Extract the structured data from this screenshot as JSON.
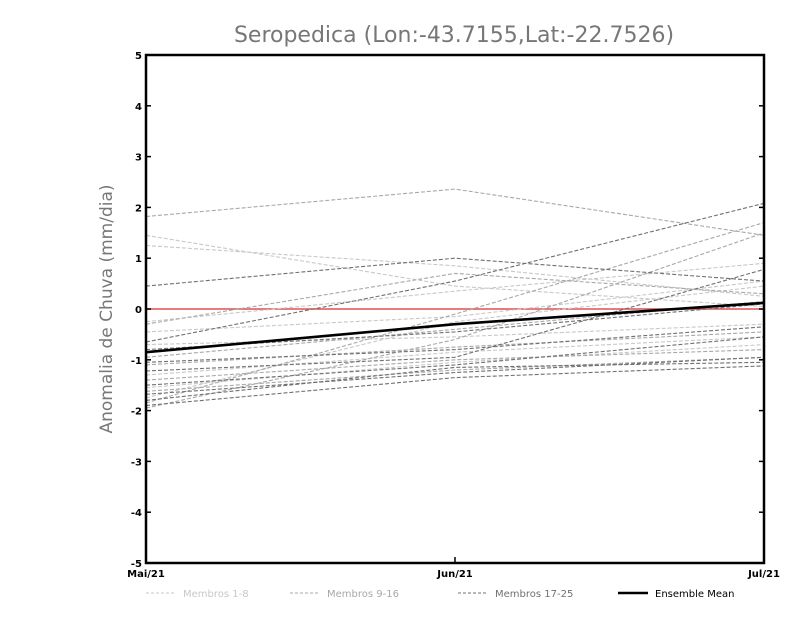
{
  "chart_data": {
    "type": "line",
    "title": "Seropedica (Lon:-43.7155,Lat:-22.7526)",
    "ylabel": "Anomalia de Chuva (mm/dia)",
    "categories": [
      "Mai/21",
      "Jun/21",
      "Jul/21"
    ],
    "ylim": [
      -5,
      5
    ],
    "yticks": [
      "5",
      "4",
      "3",
      "2",
      "1",
      "0",
      "-1",
      "-2",
      "-3",
      "-4",
      "-5"
    ],
    "reference_line": {
      "y": 0,
      "color": "#e05050"
    },
    "groups": [
      {
        "name": "Membros 1-8",
        "color": "#c8c8c8",
        "members": [
          [
            1.45,
            0.45,
            0.05
          ],
          [
            1.25,
            0.85,
            0.25
          ],
          [
            -0.25,
            0.35,
            0.9
          ],
          [
            -0.45,
            -0.15,
            0.55
          ],
          [
            -0.7,
            -0.55,
            -0.3
          ],
          [
            -1.3,
            -0.85,
            -0.55
          ],
          [
            -1.55,
            -1.05,
            -0.7
          ],
          [
            -1.75,
            -0.25,
            0.45
          ]
        ]
      },
      {
        "name": "Membros 9-16",
        "color": "#a8a8a8",
        "members": [
          [
            1.82,
            2.36,
            1.45
          ],
          [
            -0.3,
            0.7,
            0.3
          ],
          [
            -0.95,
            -0.4,
            0.15
          ],
          [
            -1.1,
            -0.75,
            -0.45
          ],
          [
            -1.4,
            -1.0,
            -0.8
          ],
          [
            -1.62,
            -1.2,
            -0.95
          ],
          [
            -1.85,
            -0.1,
            1.7
          ],
          [
            -1.95,
            -0.6,
            1.5
          ]
        ]
      },
      {
        "name": "Membros 17-25",
        "color": "#707070",
        "members": [
          [
            0.45,
            1.0,
            0.55
          ],
          [
            -0.65,
            0.55,
            2.08
          ],
          [
            -0.8,
            -0.45,
            0.1
          ],
          [
            -1.05,
            -0.8,
            -0.35
          ],
          [
            -1.22,
            -0.95,
            0.78
          ],
          [
            -1.5,
            -1.1,
            -0.55
          ],
          [
            -1.68,
            -1.25,
            -0.95
          ],
          [
            -1.8,
            -1.15,
            -1.05
          ],
          [
            -1.9,
            -1.35,
            -1.12
          ]
        ]
      }
    ],
    "ensemble_mean": {
      "name": "Ensemble Mean",
      "color": "#000000",
      "values": [
        -0.85,
        -0.3,
        0.12
      ]
    },
    "legend": [
      "Membros 1-8",
      "Membros 9-16",
      "Membros 17-25",
      "Ensemble Mean"
    ],
    "legend_position": "bottom"
  }
}
